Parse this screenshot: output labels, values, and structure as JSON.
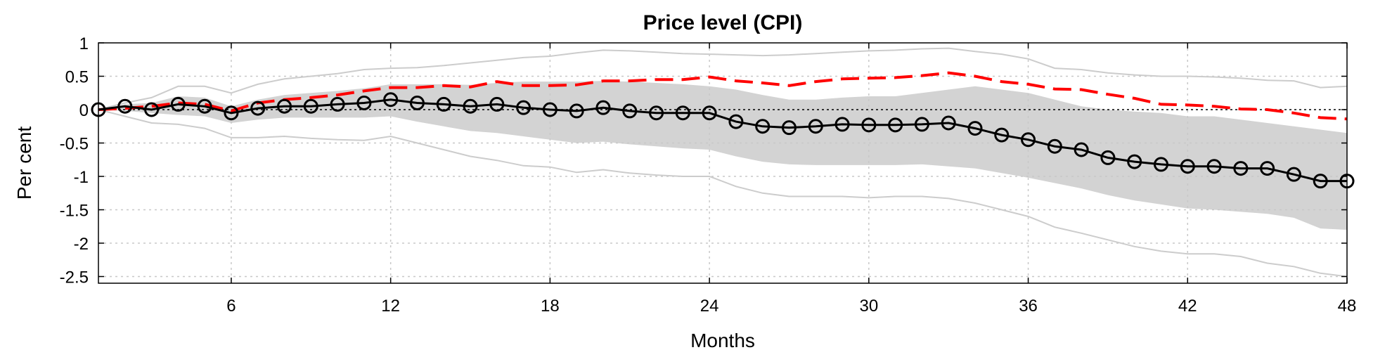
{
  "chart_data": {
    "type": "line",
    "title": "Price level (CPI)",
    "xlabel": "Months",
    "ylabel": "Per cent",
    "xlim": [
      1,
      48
    ],
    "ylim": [
      -2.6,
      1.0
    ],
    "xticks": [
      6,
      12,
      18,
      24,
      30,
      36,
      42,
      48
    ],
    "xtick_labels": [
      "6",
      "12",
      "18",
      "24",
      "30",
      "36",
      "42",
      "48"
    ],
    "yticks": [
      1,
      0.5,
      0,
      -0.5,
      -1,
      -1.5,
      -2,
      -2.5
    ],
    "ytick_labels": [
      "1",
      "0.5",
      "0",
      "-0.5",
      "-1",
      "-1.5",
      "-2",
      "-2.5"
    ],
    "grid": true,
    "zero_line": true,
    "x": [
      1,
      2,
      3,
      4,
      5,
      6,
      7,
      8,
      9,
      10,
      11,
      12,
      13,
      14,
      15,
      16,
      17,
      18,
      19,
      20,
      21,
      22,
      23,
      24,
      25,
      26,
      27,
      28,
      29,
      30,
      31,
      32,
      33,
      34,
      35,
      36,
      37,
      38,
      39,
      40,
      41,
      42,
      43,
      44,
      45,
      46,
      47,
      48
    ],
    "series": [
      {
        "role": "outer-band-upper",
        "color": "#cccccc",
        "values": [
          0.0,
          0.1,
          0.18,
          0.35,
          0.35,
          0.25,
          0.38,
          0.46,
          0.5,
          0.54,
          0.6,
          0.62,
          0.63,
          0.66,
          0.7,
          0.74,
          0.78,
          0.8,
          0.85,
          0.89,
          0.88,
          0.86,
          0.84,
          0.83,
          0.82,
          0.81,
          0.82,
          0.84,
          0.86,
          0.88,
          0.89,
          0.91,
          0.92,
          0.87,
          0.83,
          0.76,
          0.62,
          0.6,
          0.55,
          0.52,
          0.5,
          0.5,
          0.49,
          0.47,
          0.44,
          0.43,
          0.33,
          0.35
        ]
      },
      {
        "role": "outer-band-lower",
        "color": "#cccccc",
        "values": [
          0.0,
          -0.1,
          -0.2,
          -0.22,
          -0.28,
          -0.42,
          -0.42,
          -0.4,
          -0.43,
          -0.45,
          -0.46,
          -0.4,
          -0.5,
          -0.6,
          -0.7,
          -0.76,
          -0.84,
          -0.86,
          -0.94,
          -0.9,
          -0.95,
          -0.98,
          -1.0,
          -1.0,
          -1.15,
          -1.25,
          -1.3,
          -1.3,
          -1.3,
          -1.32,
          -1.3,
          -1.3,
          -1.33,
          -1.4,
          -1.5,
          -1.6,
          -1.76,
          -1.85,
          -1.95,
          -2.05,
          -2.12,
          -2.16,
          -2.16,
          -2.2,
          -2.3,
          -2.35,
          -2.45,
          -2.5
        ]
      },
      {
        "role": "band-upper",
        "color": "#d3d3d3",
        "values": [
          0.0,
          0.08,
          0.1,
          0.2,
          0.18,
          0.05,
          0.15,
          0.22,
          0.25,
          0.28,
          0.32,
          0.38,
          0.38,
          0.38,
          0.37,
          0.4,
          0.42,
          0.42,
          0.42,
          0.43,
          0.42,
          0.4,
          0.38,
          0.35,
          0.3,
          0.22,
          0.15,
          0.15,
          0.18,
          0.2,
          0.2,
          0.25,
          0.3,
          0.35,
          0.3,
          0.25,
          0.15,
          0.05,
          0.0,
          -0.03,
          -0.05,
          -0.1,
          -0.1,
          -0.15,
          -0.2,
          -0.25,
          -0.3,
          -0.35
        ]
      },
      {
        "role": "band-lower",
        "color": "#d3d3d3",
        "values": [
          0.0,
          -0.02,
          -0.05,
          -0.08,
          -0.1,
          -0.2,
          -0.15,
          -0.12,
          -0.12,
          -0.12,
          -0.12,
          -0.1,
          -0.18,
          -0.25,
          -0.32,
          -0.35,
          -0.4,
          -0.45,
          -0.5,
          -0.48,
          -0.52,
          -0.55,
          -0.58,
          -0.6,
          -0.7,
          -0.78,
          -0.82,
          -0.83,
          -0.83,
          -0.83,
          -0.83,
          -0.82,
          -0.85,
          -0.88,
          -0.95,
          -1.02,
          -1.1,
          -1.18,
          -1.28,
          -1.36,
          -1.42,
          -1.48,
          -1.5,
          -1.53,
          -1.56,
          -1.62,
          -1.78,
          -1.8
        ]
      },
      {
        "role": "counterfactual",
        "color": "#ff0000",
        "values": [
          0.0,
          0.02,
          0.05,
          0.1,
          0.08,
          -0.02,
          0.1,
          0.15,
          0.18,
          0.22,
          0.28,
          0.33,
          0.33,
          0.36,
          0.34,
          0.42,
          0.36,
          0.36,
          0.37,
          0.43,
          0.43,
          0.45,
          0.45,
          0.49,
          0.43,
          0.4,
          0.36,
          0.42,
          0.46,
          0.47,
          0.48,
          0.51,
          0.55,
          0.5,
          0.42,
          0.38,
          0.31,
          0.3,
          0.23,
          0.17,
          0.08,
          0.07,
          0.05,
          0.01,
          0.0,
          -0.05,
          -0.12,
          -0.14
        ]
      },
      {
        "role": "median",
        "color": "#000000",
        "values": [
          0.0,
          0.05,
          0.0,
          0.08,
          0.05,
          -0.05,
          0.02,
          0.05,
          0.05,
          0.08,
          0.1,
          0.15,
          0.1,
          0.08,
          0.05,
          0.08,
          0.03,
          0.0,
          -0.02,
          0.03,
          -0.02,
          -0.05,
          -0.05,
          -0.05,
          -0.18,
          -0.25,
          -0.27,
          -0.25,
          -0.22,
          -0.23,
          -0.23,
          -0.22,
          -0.2,
          -0.28,
          -0.38,
          -0.45,
          -0.55,
          -0.6,
          -0.72,
          -0.78,
          -0.82,
          -0.85,
          -0.85,
          -0.88,
          -0.88,
          -0.97,
          -1.07,
          -1.07
        ]
      }
    ]
  }
}
